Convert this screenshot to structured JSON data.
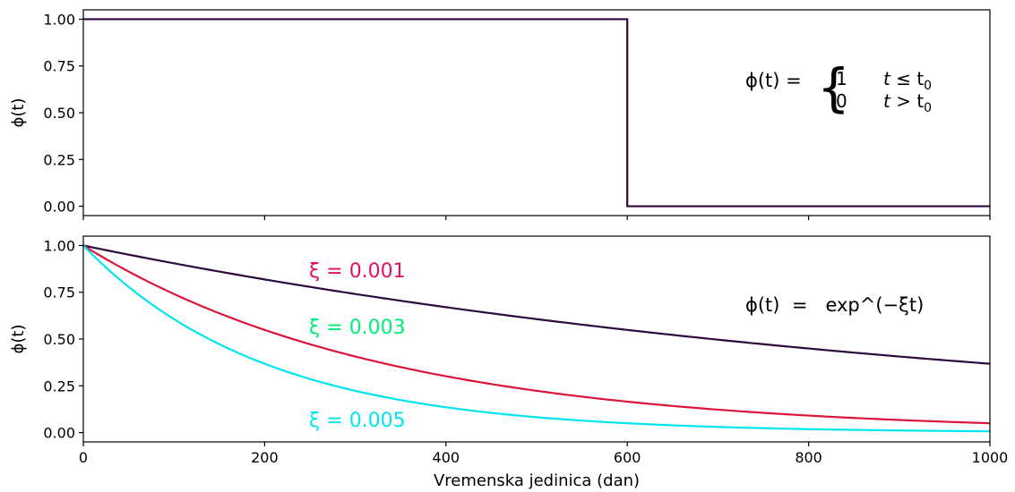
{
  "chart_data": [
    {
      "type": "line",
      "title": "",
      "xlabel": "",
      "ylabel": "ϕ(t)",
      "xlim": [
        0,
        1000
      ],
      "ylim": [
        -0.05,
        1.05
      ],
      "yticks": [
        "0.00",
        "0.25",
        "0.50",
        "0.75",
        "1.00"
      ],
      "xtick_labels_shown": false,
      "series": [
        {
          "color": "#2d0a3e",
          "x": [
            0,
            600,
            600,
            1000
          ],
          "y": [
            1,
            1,
            0,
            0
          ]
        }
      ],
      "annotation": {
        "lhs": "ϕ(t)  =",
        "brace": "{",
        "case1_value": "1",
        "case1_condition_var": "t",
        "case1_condition_op": " ≤ t",
        "case2_value": "0",
        "case2_condition_var": "t",
        "case2_condition_op": " > t",
        "subscript": "0"
      }
    },
    {
      "type": "line",
      "title": "",
      "xlabel": "Vremenska jedinica (dan)",
      "ylabel": "ϕ(t)",
      "xlim": [
        0,
        1000
      ],
      "ylim": [
        -0.05,
        1.05
      ],
      "xticks": [
        "0",
        "200",
        "400",
        "600",
        "800",
        "1000"
      ],
      "yticks": [
        "0.00",
        "0.25",
        "0.50",
        "0.75",
        "1.00"
      ],
      "function": "exp(-ξ·t)",
      "series": [
        {
          "xi": 0.001,
          "color": "#2d0a3e"
        },
        {
          "xi": 0.003,
          "color": "#dc143c"
        },
        {
          "xi": 0.005,
          "color": "#00e5ee"
        }
      ],
      "labels": [
        {
          "text": "ξ = 0.001",
          "color": "#e0115f"
        },
        {
          "text": "ξ = 0.003",
          "color": "#00ee76"
        },
        {
          "text": "ξ = 0.005",
          "color": "#00e5ee"
        }
      ],
      "annotation": {
        "text": "ϕ(t)  =   exp^(−ξt)"
      }
    }
  ]
}
